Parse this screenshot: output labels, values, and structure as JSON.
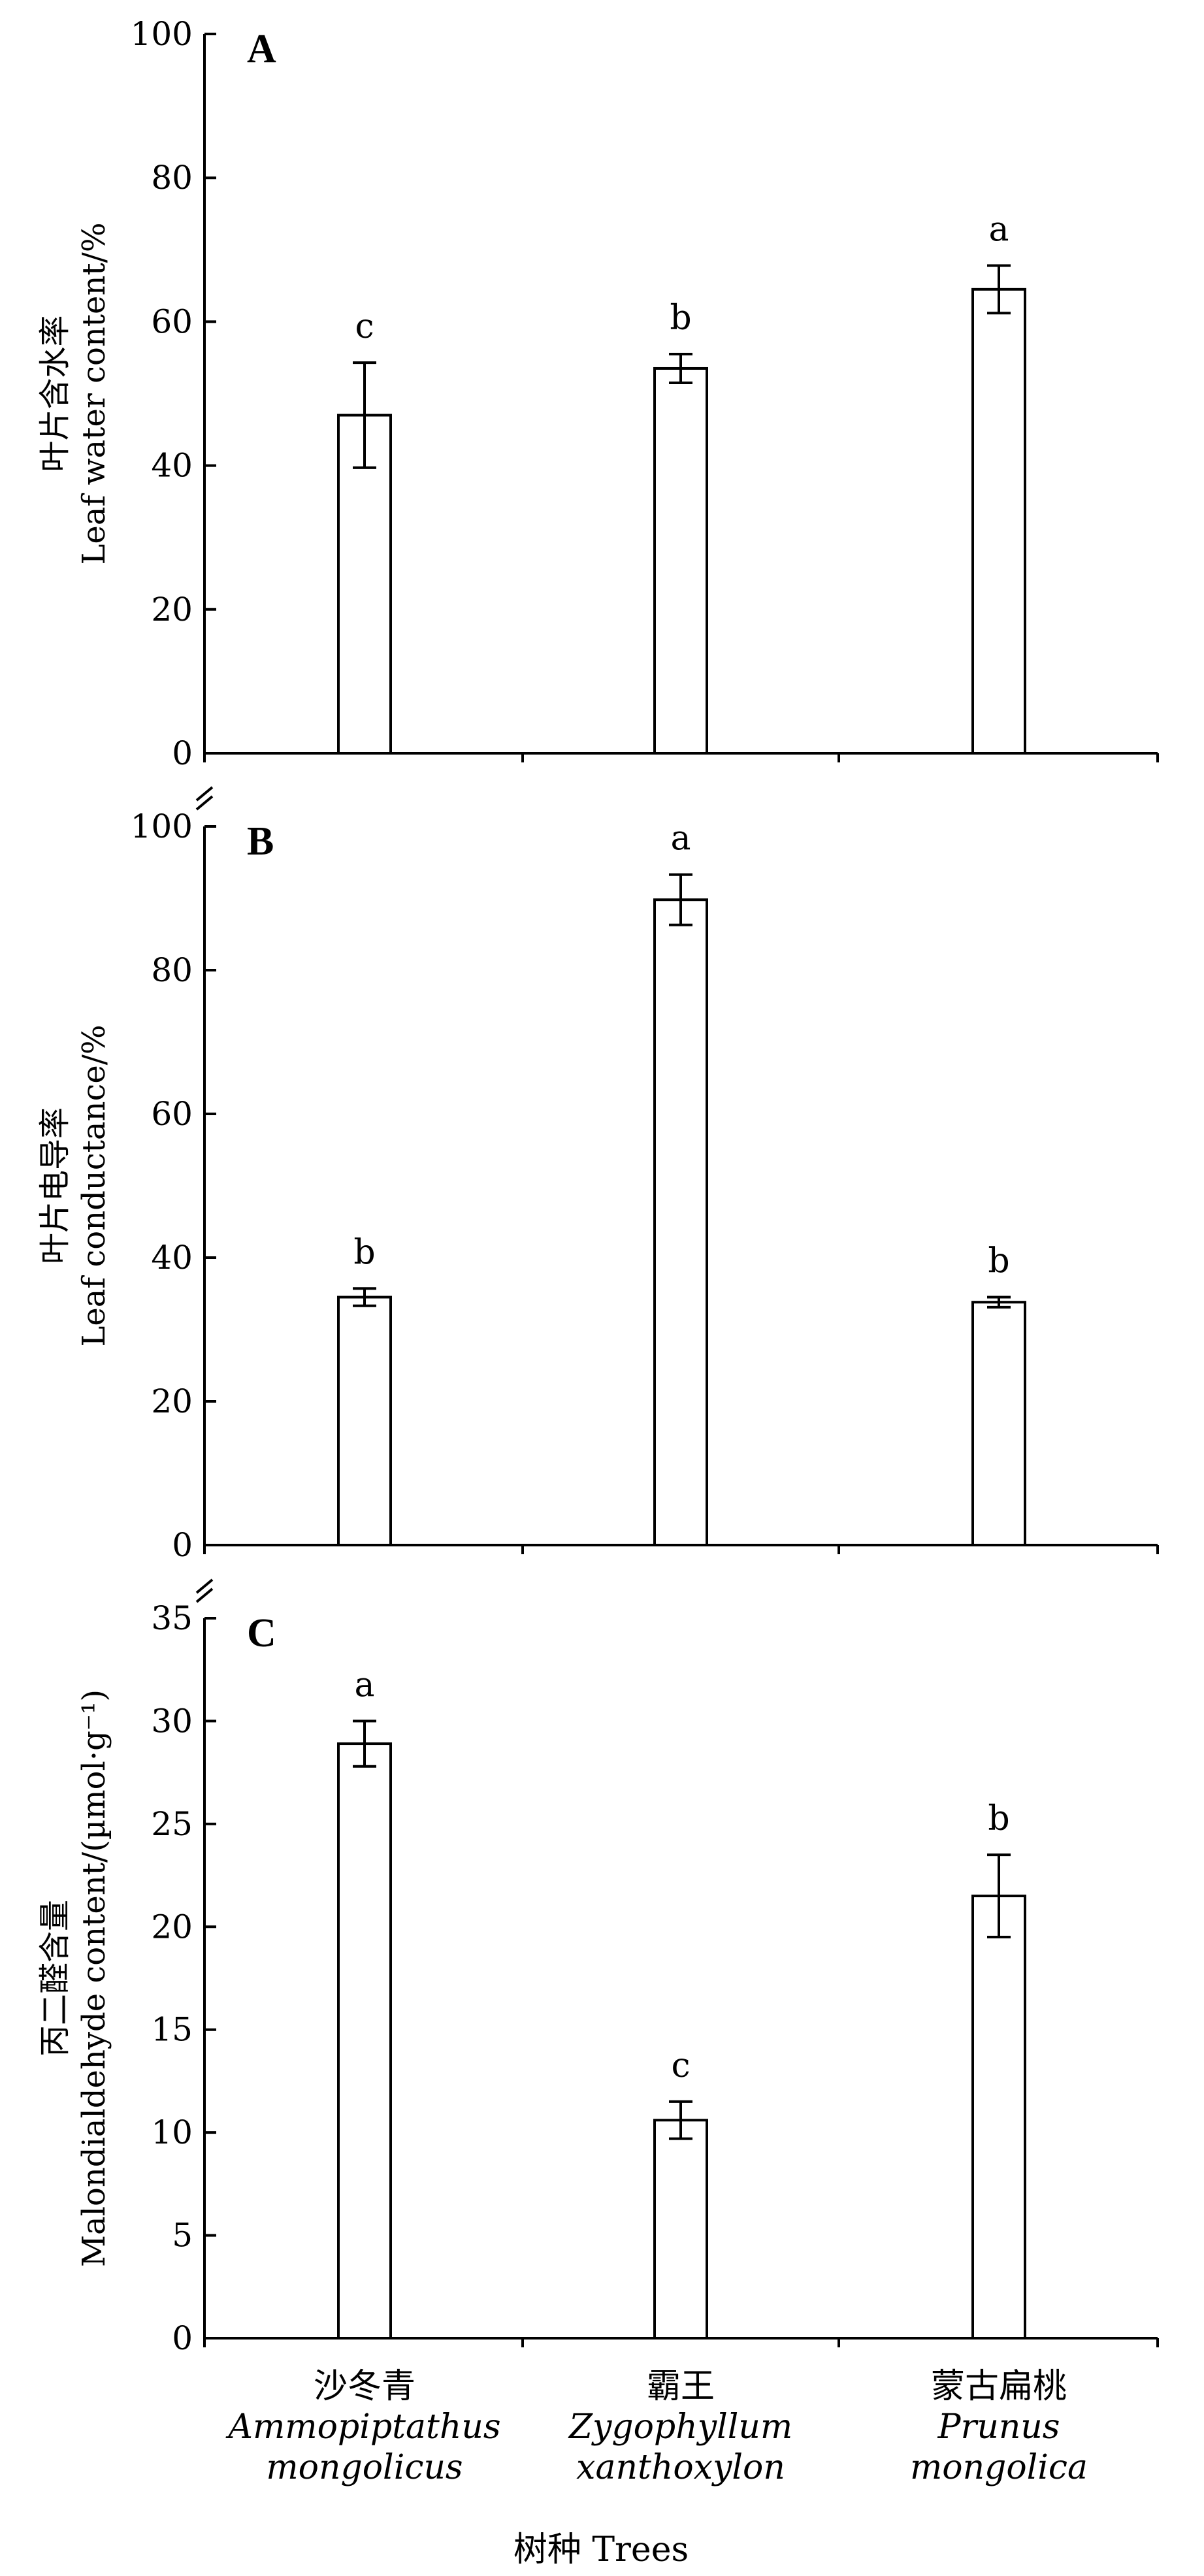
{
  "chart_data": [
    {
      "panel": "A",
      "type": "bar",
      "ylabel_cn": "叶片含水率",
      "ylabel_en": "Leaf water content/%",
      "ylim": [
        0,
        100
      ],
      "yticks": [
        0,
        20,
        40,
        60,
        80,
        100
      ],
      "series": [
        {
          "values": [
            47,
            53.5,
            64.5
          ],
          "errors": [
            7.3,
            2.0,
            3.3
          ],
          "letters": [
            "c",
            "b",
            "a"
          ]
        }
      ]
    },
    {
      "panel": "B",
      "type": "bar",
      "ylabel_cn": "叶片电导率",
      "ylabel_en": "Leaf conductance/%",
      "ylim": [
        0,
        100
      ],
      "yticks": [
        0,
        20,
        40,
        60,
        80,
        100
      ],
      "series": [
        {
          "values": [
            34.5,
            89.8,
            33.8
          ],
          "errors": [
            1.2,
            3.5,
            0.7
          ],
          "letters": [
            "b",
            "a",
            "b"
          ]
        }
      ]
    },
    {
      "panel": "C",
      "type": "bar",
      "ylabel_cn": "丙二醛含量",
      "ylabel_en": "Malondialdehyde content/(µmol·g⁻¹)",
      "ylim": [
        0,
        35
      ],
      "yticks": [
        0,
        5,
        10,
        15,
        20,
        25,
        30,
        35
      ],
      "series": [
        {
          "values": [
            28.9,
            10.6,
            21.5
          ],
          "errors": [
            1.1,
            0.9,
            2.0
          ],
          "letters": [
            "a",
            "c",
            "b"
          ]
        }
      ]
    }
  ],
  "categories": [
    {
      "cn": "沙冬青",
      "latin1": "Ammopiptathus",
      "latin2": "mongolicus"
    },
    {
      "cn": "霸王",
      "latin1": "Zygophyllum",
      "latin2": "xanthoxylon"
    },
    {
      "cn": "蒙古扁桃",
      "latin1": "Prunus",
      "latin2": "mongolica"
    }
  ],
  "xlabel": "树种 Trees"
}
